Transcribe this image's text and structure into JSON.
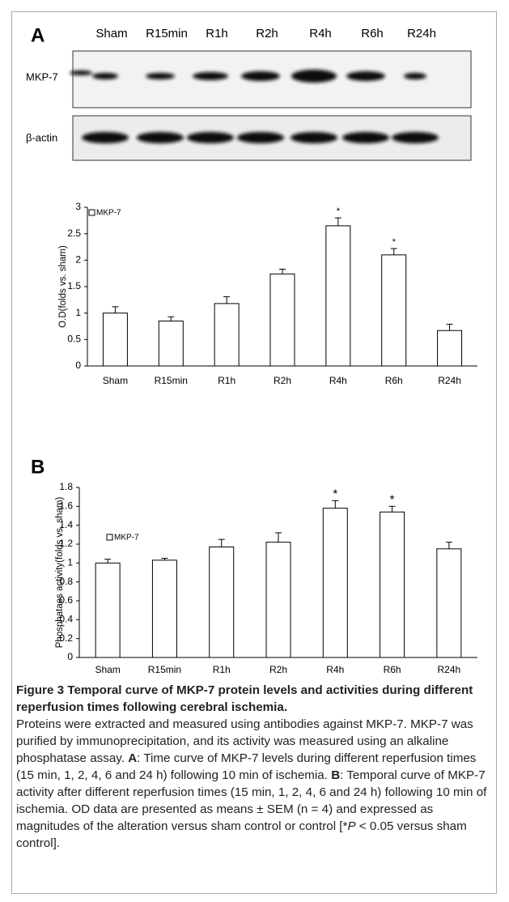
{
  "panels": {
    "a": "A",
    "b": "B"
  },
  "blot": {
    "lanes": [
      "Sham",
      "R15min",
      "R1h",
      "R2h",
      "R4h",
      "R6h",
      "R24h"
    ],
    "rows": [
      "MKP-7",
      "β-actin"
    ]
  },
  "chart_data": [
    {
      "type": "bar",
      "y_label": "O.D(folds vs. sham)",
      "categories": [
        "Sham",
        "R15min",
        "R1h",
        "R2h",
        "R4h",
        "R6h",
        "R24h"
      ],
      "series": [
        {
          "name": "MKP-7",
          "color": "#ffffff",
          "values": [
            1.0,
            0.85,
            1.18,
            1.74,
            2.65,
            2.1,
            0.67
          ],
          "errors": [
            0.12,
            0.08,
            0.13,
            0.09,
            0.15,
            0.12,
            0.12
          ]
        }
      ],
      "annotations": [
        {
          "category": "R4h",
          "text": "*"
        },
        {
          "category": "R6h",
          "text": "*"
        }
      ],
      "ylim": [
        0,
        3
      ],
      "yticks": [
        0,
        0.5,
        1,
        1.5,
        2,
        2.5,
        3
      ],
      "grid": false
    },
    {
      "type": "bar",
      "y_label": "Phosphataes activity(folds vs. sham)",
      "categories": [
        "Sham",
        "R15min",
        "R1h",
        "R2h",
        "R4h",
        "R6h",
        "R24h"
      ],
      "series": [
        {
          "name": "MKP-7",
          "color": "#ffffff",
          "values": [
            1.0,
            1.03,
            1.17,
            1.22,
            1.58,
            1.54,
            1.15
          ],
          "errors": [
            0.04,
            0.02,
            0.08,
            0.1,
            0.08,
            0.06,
            0.07
          ]
        }
      ],
      "annotations": [
        {
          "category": "R4h",
          "text": "*"
        },
        {
          "category": "R6h",
          "text": "*"
        }
      ],
      "ylim": [
        0,
        1.8
      ],
      "yticks": [
        0,
        0.2,
        0.4,
        0.6,
        0.8,
        1,
        1.2,
        1.4,
        1.6,
        1.8
      ],
      "grid": false
    }
  ],
  "caption": {
    "title": "Figure 3 Temporal curve of MKP-7 protein levels and activities during different reperfusion times following cerebral ischemia.",
    "body": [
      "Proteins were extracted and measured using antibodies against MKP-7. MKP-7 was purified by immunoprecipitation, and its activity was measured using an alkaline phosphatase assay. ",
      "A",
      ": Time curve of MKP-7 levels during different reperfusion times (15 min, 1, 2, 4, 6 and 24 h) following 10 min of ischemia. ",
      "B",
      ": Temporal curve of MKP-7 activity after different reperfusion times (15 min, 1, 2, 4, 6 and 24 h) following 10 min of ischemia. OD data are presented as means ± SEM (n = 4) and expressed as magnitudes of the alteration versus sham control or control [*",
      "P",
      " < 0.05 versus sham control]."
    ]
  }
}
